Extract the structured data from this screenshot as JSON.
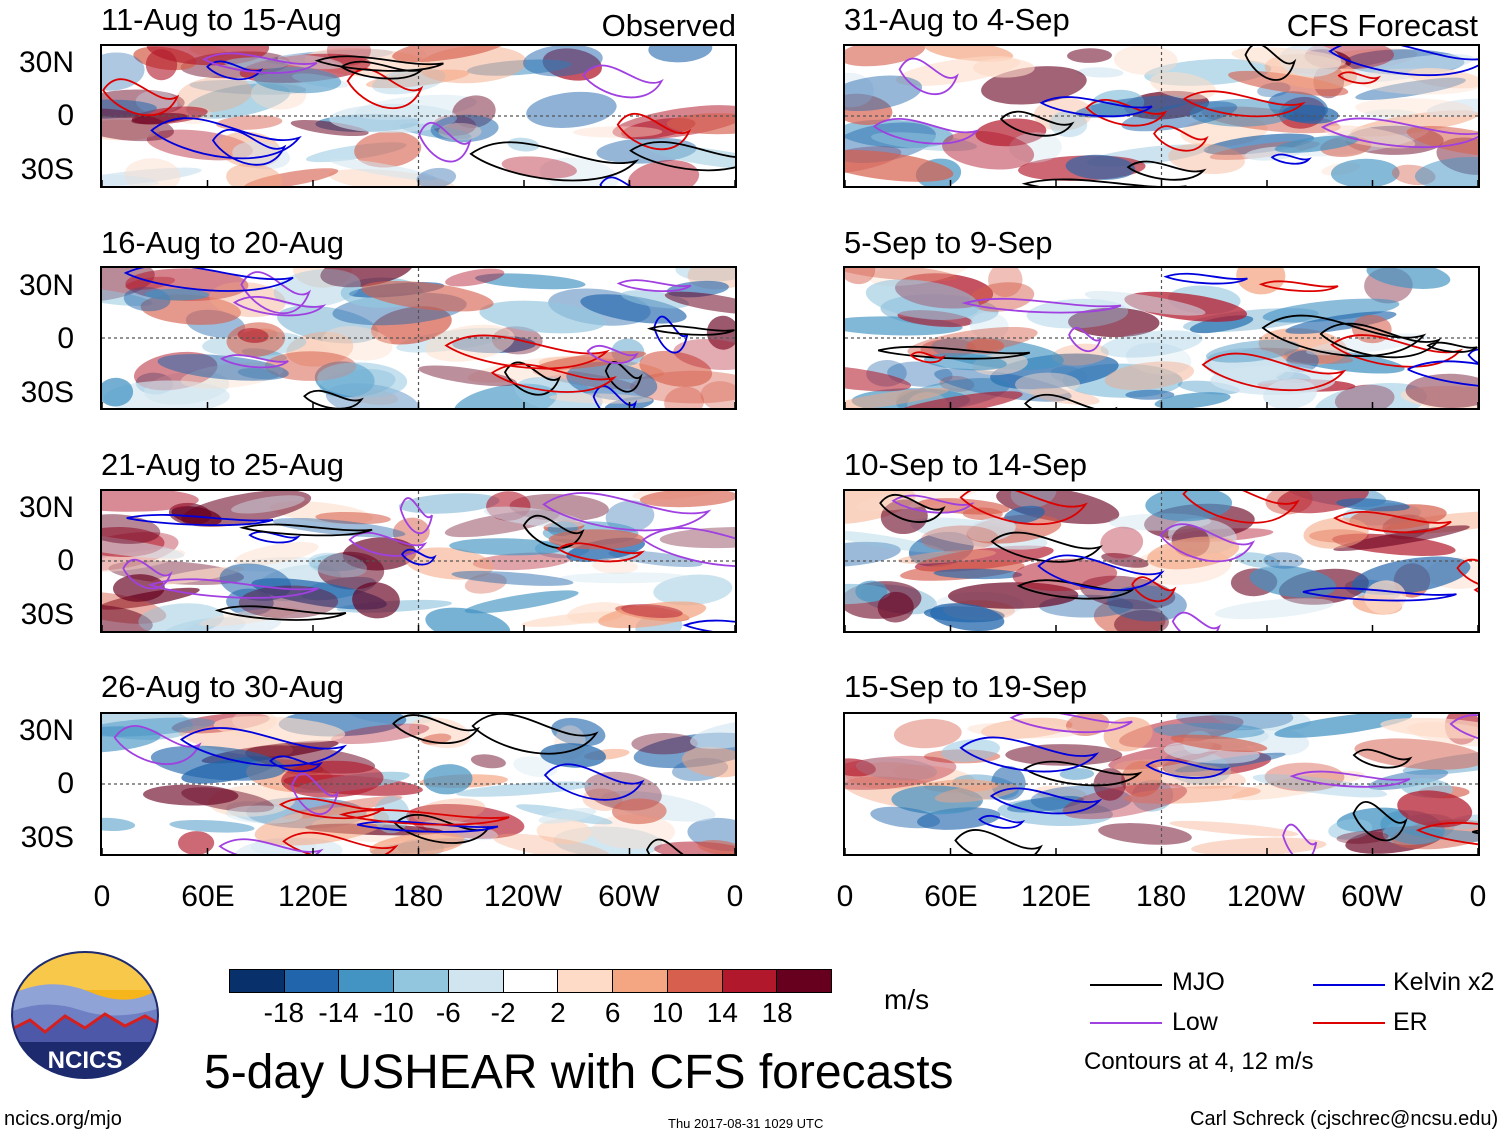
{
  "observed_label": "Observed",
  "forecast_label": "CFS Forecast",
  "panels_left": [
    {
      "title": "11-Aug to 15-Aug"
    },
    {
      "title": "16-Aug to 20-Aug"
    },
    {
      "title": "21-Aug to 25-Aug"
    },
    {
      "title": "26-Aug to 30-Aug"
    }
  ],
  "panels_right": [
    {
      "title": "31-Aug to 4-Sep"
    },
    {
      "title": "5-Sep to 9-Sep"
    },
    {
      "title": "10-Sep to 14-Sep"
    },
    {
      "title": "15-Sep to 19-Sep"
    }
  ],
  "y_ticks": [
    "30N",
    "0",
    "30S"
  ],
  "x_ticks": [
    "0",
    "60E",
    "120E",
    "180",
    "120W",
    "60W",
    "0"
  ],
  "colorbar": {
    "colors": [
      "#08306b",
      "#2166ac",
      "#4393c3",
      "#92c5de",
      "#d1e5f0",
      "#ffffff",
      "#fddbc7",
      "#f4a582",
      "#d6604d",
      "#b2182b",
      "#67001f"
    ],
    "labels": [
      "-18",
      "-14",
      "-10",
      "-6",
      "-2",
      "2",
      "6",
      "10",
      "14",
      "18"
    ],
    "units": "m/s"
  },
  "legend": {
    "mjo": {
      "label": "MJO",
      "color": "#000000"
    },
    "kelvin": {
      "label": "Kelvin x2",
      "color": "#0000dd"
    },
    "low": {
      "label": "Low",
      "color": "#a040e0"
    },
    "er": {
      "label": "ER",
      "color": "#dd0000"
    },
    "contours_note": "Contours at 4, 12 m/s"
  },
  "title": "5-day USHEAR with CFS forecasts",
  "footer": {
    "url": "ncics.org/mjo",
    "timestamp": "Thu 2017-08-31 1029 UTC",
    "author": "Carl Schreck (cjschrec@ncsu.edu)"
  },
  "logo_text": "NCICS"
}
